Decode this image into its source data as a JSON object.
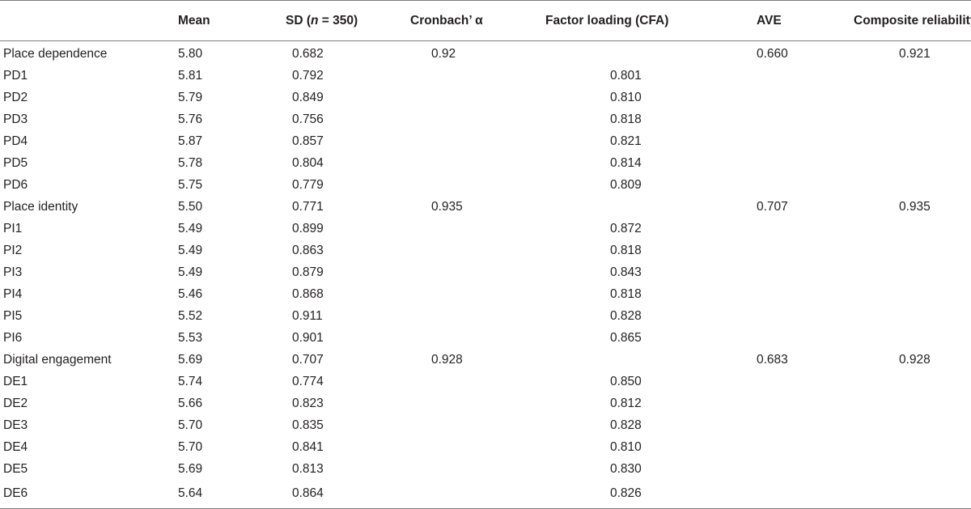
{
  "headers": {
    "label": "",
    "mean": "Mean",
    "sd_prefix": "SD (",
    "sd_n": "n",
    "sd_suffix": " = 350)",
    "alpha": "Cronbach’ α",
    "factor_loading": "Factor loading (CFA)",
    "ave": "AVE",
    "composite_reliability": "Composite reliability"
  },
  "rows": [
    {
      "label": "Place dependence",
      "mean": "5.80",
      "sd": "0.682",
      "alpha": "0.92",
      "fl": "",
      "ave": "0.660",
      "cr": "0.921"
    },
    {
      "label": "PD1",
      "mean": "5.81",
      "sd": "0.792",
      "alpha": "",
      "fl": "0.801",
      "ave": "",
      "cr": ""
    },
    {
      "label": "PD2",
      "mean": "5.79",
      "sd": "0.849",
      "alpha": "",
      "fl": "0.810",
      "ave": "",
      "cr": ""
    },
    {
      "label": "PD3",
      "mean": "5.76",
      "sd": "0.756",
      "alpha": "",
      "fl": "0.818",
      "ave": "",
      "cr": ""
    },
    {
      "label": "PD4",
      "mean": "5.87",
      "sd": "0.857",
      "alpha": "",
      "fl": "0.821",
      "ave": "",
      "cr": ""
    },
    {
      "label": "PD5",
      "mean": "5.78",
      "sd": "0.804",
      "alpha": "",
      "fl": "0.814",
      "ave": "",
      "cr": ""
    },
    {
      "label": "PD6",
      "mean": "5.75",
      "sd": "0.779",
      "alpha": "",
      "fl": "0.809",
      "ave": "",
      "cr": ""
    },
    {
      "label": "Place identity",
      "mean": "5.50",
      "sd": "0.771",
      "alpha": "0.935",
      "fl": "",
      "ave": "0.707",
      "cr": "0.935"
    },
    {
      "label": "PI1",
      "mean": "5.49",
      "sd": "0.899",
      "alpha": "",
      "fl": "0.872",
      "ave": "",
      "cr": ""
    },
    {
      "label": "PI2",
      "mean": "5.49",
      "sd": "0.863",
      "alpha": "",
      "fl": "0.818",
      "ave": "",
      "cr": ""
    },
    {
      "label": "PI3",
      "mean": "5.49",
      "sd": "0.879",
      "alpha": "",
      "fl": "0.843",
      "ave": "",
      "cr": ""
    },
    {
      "label": "PI4",
      "mean": "5.46",
      "sd": "0.868",
      "alpha": "",
      "fl": "0.818",
      "ave": "",
      "cr": ""
    },
    {
      "label": "PI5",
      "mean": "5.52",
      "sd": "0.911",
      "alpha": "",
      "fl": "0.828",
      "ave": "",
      "cr": ""
    },
    {
      "label": "PI6",
      "mean": "5.53",
      "sd": "0.901",
      "alpha": "",
      "fl": "0.865",
      "ave": "",
      "cr": ""
    },
    {
      "label": "Digital engagement",
      "mean": "5.69",
      "sd": "0.707",
      "alpha": "0.928",
      "fl": "",
      "ave": "0.683",
      "cr": "0.928"
    },
    {
      "label": "DE1",
      "mean": "5.74",
      "sd": "0.774",
      "alpha": "",
      "fl": "0.850",
      "ave": "",
      "cr": ""
    },
    {
      "label": "DE2",
      "mean": "5.66",
      "sd": "0.823",
      "alpha": "",
      "fl": "0.812",
      "ave": "",
      "cr": ""
    },
    {
      "label": "DE3",
      "mean": "5.70",
      "sd": "0.835",
      "alpha": "",
      "fl": "0.828",
      "ave": "",
      "cr": ""
    },
    {
      "label": "DE4",
      "mean": "5.70",
      "sd": "0.841",
      "alpha": "",
      "fl": "0.810",
      "ave": "",
      "cr": ""
    },
    {
      "label": "DE5",
      "mean": "5.69",
      "sd": "0.813",
      "alpha": "",
      "fl": "0.830",
      "ave": "",
      "cr": ""
    },
    {
      "label": "DE6",
      "mean": "5.64",
      "sd": "0.864",
      "alpha": "",
      "fl": "0.826",
      "ave": "",
      "cr": ""
    }
  ]
}
